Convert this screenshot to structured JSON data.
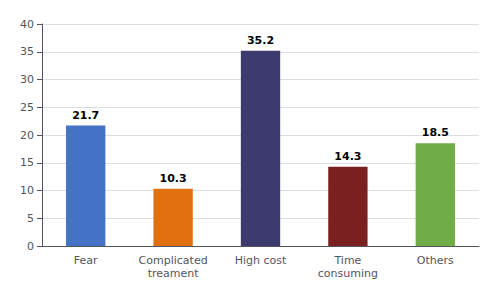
{
  "chart_data": {
    "type": "bar",
    "categories": [
      "Fear",
      "Complicated\ntreament",
      "High cost",
      "Time\nconsuming",
      "Others"
    ],
    "values": [
      21.7,
      10.3,
      35.2,
      14.3,
      18.5
    ],
    "colors": [
      "#4472C4",
      "#E07010",
      "#3D3B6E",
      "#7B2020",
      "#70AD47"
    ],
    "ylim": [
      0,
      40
    ],
    "yticks": [
      0,
      5,
      10,
      15,
      20,
      25,
      30,
      35,
      40
    ],
    "grid": true,
    "data_labels": true
  }
}
